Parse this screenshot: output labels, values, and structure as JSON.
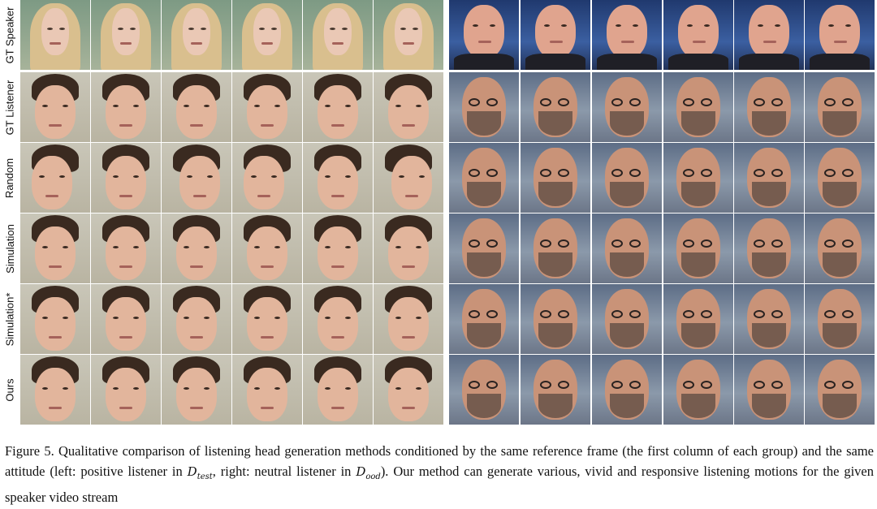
{
  "figure": {
    "row_labels": [
      "GT Speaker",
      "GT Listener",
      "Random",
      "Simulation",
      "Simulation*",
      "Ours"
    ],
    "groups": [
      {
        "subject_left_speaker": "woman-speaker",
        "subject_listener": "young-man-listener"
      },
      {
        "subject_left_speaker": "man-speaker",
        "subject_listener": "bearded-man-listener"
      }
    ]
  },
  "caption": {
    "prefix": "Figure 5.",
    "text_part1": " Qualitative comparison of listening head generation methods conditioned by the same reference frame (the first column of each group) and the same attitude (left: positive listener in ",
    "math1_main": "D",
    "math1_sub": "test",
    "text_part2": ", right: neutral listener in ",
    "math2_main": "D",
    "math2_sub": "ood",
    "text_part3": "). Our method can generate various, vivid and responsive listening motions for the given speaker video stream"
  },
  "colors": {
    "left_bg_speaker": "#8fa58a",
    "left_bg_listener": "#c8c4b6",
    "right_bg_speaker": "#2d4f8a",
    "right_bg_listener": "#6f7f94"
  }
}
